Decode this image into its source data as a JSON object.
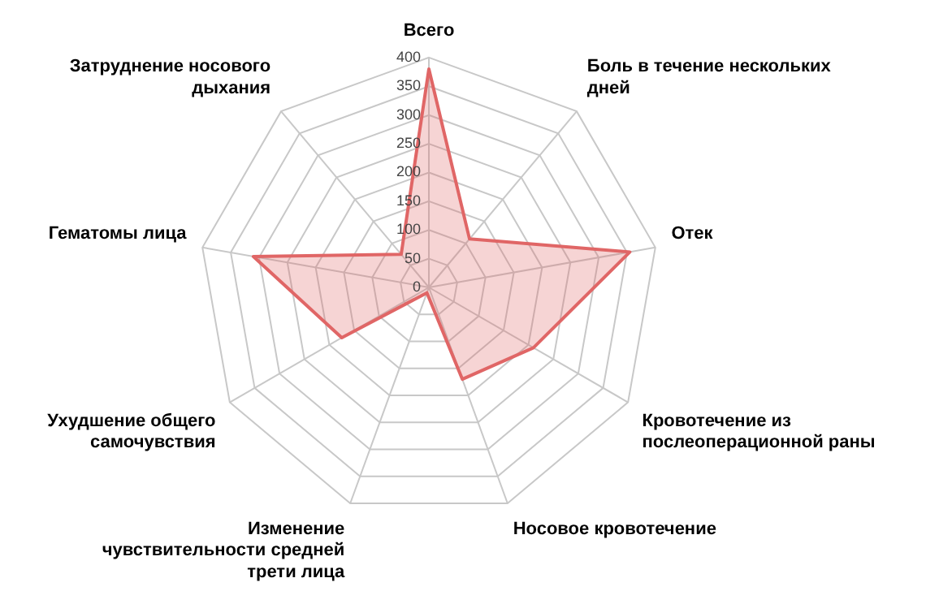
{
  "chart_data": {
    "type": "radar",
    "categories": [
      "Всего",
      "Боль в течение нескольких дней",
      "Отек",
      "Кровотечение из послеоперационной раны",
      "Носовое кровотечение",
      "Изменение чувствительности средней трети лица",
      "Ухудшение общего самочувствия",
      "Гематомы лица",
      "Затруднение носового дыхания"
    ],
    "series": [
      {
        "color": "#e06666",
        "values": [
          380,
          110,
          355,
          210,
          170,
          10,
          175,
          310,
          75
        ]
      }
    ],
    "ylim": [
      0,
      400
    ],
    "yticks": [
      0,
      50,
      100,
      150,
      200,
      250,
      300,
      350,
      400
    ],
    "grid": true,
    "legend": false,
    "marker": "none"
  }
}
